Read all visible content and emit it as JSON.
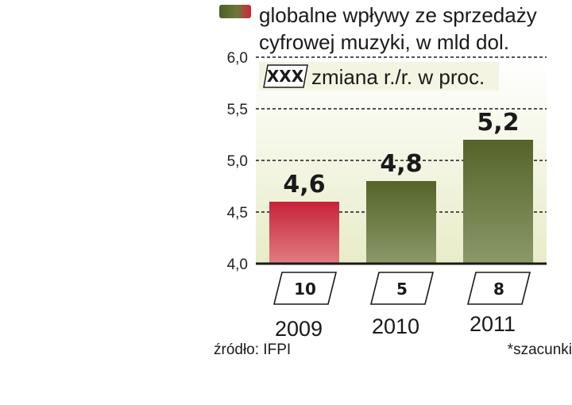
{
  "chart_data": {
    "type": "bar",
    "title": "globalne wpływy ze sprzedaży cyfrowej muzyki, w mld dol.",
    "title_lines": [
      "globalne wpływy ze sprzedaży",
      "cyfrowej muzyki, w mld dol."
    ],
    "change_legend": {
      "marker": "XXX",
      "text": "zmiana r./r. w proc."
    },
    "categories": [
      "2009",
      "2010",
      "2011"
    ],
    "values": [
      4.6,
      4.8,
      5.2
    ],
    "value_labels": [
      "4,6",
      "4,8",
      "5,2"
    ],
    "yoy_change": [
      "10",
      "5",
      "8"
    ],
    "ylim": [
      4.0,
      6.0
    ],
    "yticks": [
      4.0,
      4.5,
      5.0,
      5.5,
      6.0
    ],
    "ytick_labels": [
      "4,0",
      "4,5",
      "5,0",
      "5,5",
      "6,0"
    ],
    "grid": true,
    "colors": {
      "highlight_top": "#c8223a",
      "highlight_bottom": "#e07c82",
      "bar_top": "#55632a",
      "bar_bottom": "#8a9968",
      "panel": "#e8ecc8"
    }
  },
  "footer": {
    "source": "źródło: IFPI",
    "note": "*szacunki"
  }
}
